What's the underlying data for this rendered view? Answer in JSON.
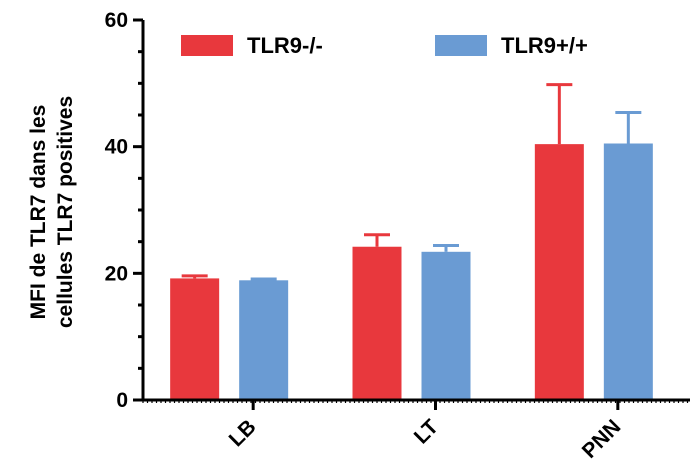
{
  "chart_data": {
    "type": "bar",
    "categories": [
      "LB",
      "LT",
      "PNN"
    ],
    "series": [
      {
        "name": "TLR9-/-",
        "color": "#e8383d",
        "values": [
          19.2,
          24.2,
          40.4
        ],
        "errors": [
          0.4,
          1.9,
          9.4
        ]
      },
      {
        "name": "TLR9+/+",
        "color": "#6a9bd3",
        "values": [
          18.9,
          23.4,
          40.5
        ],
        "errors": [
          0.2,
          1.0,
          4.9
        ]
      }
    ],
    "ylabel": [
      "MFI de TLR7 dans les",
      "cellules TLR7 positives"
    ],
    "ylim": [
      0,
      60
    ],
    "yticks": [
      0,
      20,
      40,
      60
    ],
    "ytick_labels": [
      "0",
      "20",
      "40",
      "60"
    ],
    "grid": false,
    "legend_position": "top"
  }
}
